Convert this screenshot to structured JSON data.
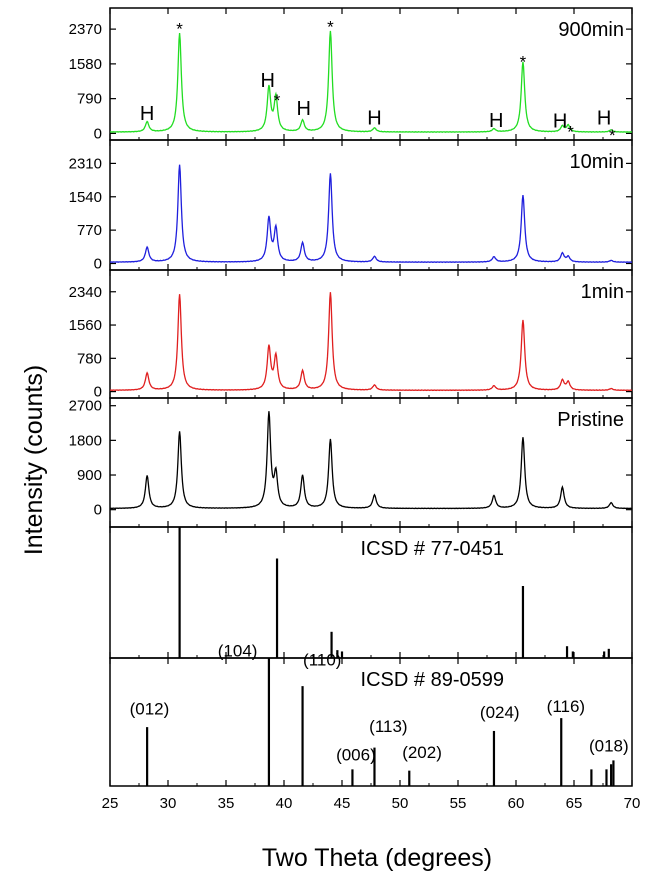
{
  "chart_data": {
    "type": "line",
    "xlabel": "Two Theta (degrees)",
    "ylabel": "Intensity (counts)",
    "xlim": [
      25,
      70
    ],
    "x_ticks": [
      25,
      30,
      35,
      40,
      45,
      50,
      55,
      60,
      65,
      70
    ],
    "grid": false,
    "peak_width": 0.18,
    "panels": [
      {
        "label": "900min",
        "color": "#22dd22",
        "ylim": [
          -150,
          2850
        ],
        "y_ticks": [
          0,
          790,
          1580,
          2370
        ],
        "baseline": 30,
        "peaks": [
          [
            28.2,
            230
          ],
          [
            31.0,
            2250
          ],
          [
            38.7,
            1000
          ],
          [
            39.3,
            780
          ],
          [
            41.6,
            260
          ],
          [
            44.0,
            2300
          ],
          [
            47.8,
            90
          ],
          [
            58.1,
            70
          ],
          [
            60.6,
            1600
          ],
          [
            64.0,
            130
          ],
          [
            64.5,
            150
          ],
          [
            68.2,
            50
          ]
        ],
        "annotations": [
          {
            "text": "H",
            "x": 28.2,
            "y": 300
          },
          {
            "text": "*",
            "x": 31.0,
            "y": 2470
          },
          {
            "text": "H",
            "x": 38.6,
            "y": 1060
          },
          {
            "text": "*",
            "x": 39.4,
            "y": 850
          },
          {
            "text": "H",
            "x": 41.7,
            "y": 420
          },
          {
            "text": "*",
            "x": 44.0,
            "y": 2520
          },
          {
            "text": "H",
            "x": 47.8,
            "y": 200
          },
          {
            "text": "H",
            "x": 58.3,
            "y": 150
          },
          {
            "text": "*",
            "x": 60.6,
            "y": 1730
          },
          {
            "text": "H",
            "x": 63.8,
            "y": 130
          },
          {
            "text": "*",
            "x": 64.7,
            "y": 130
          },
          {
            "text": "H",
            "x": 67.6,
            "y": 200
          },
          {
            "text": "*",
            "x": 68.3,
            "y": 50
          }
        ]
      },
      {
        "label": "10min",
        "color": "#1f1fdd",
        "ylim": [
          -150,
          2850
        ],
        "y_ticks": [
          0,
          770,
          1540,
          2310
        ],
        "baseline": 30,
        "peaks": [
          [
            28.2,
            340
          ],
          [
            31.0,
            2250
          ],
          [
            38.7,
            1000
          ],
          [
            39.3,
            760
          ],
          [
            41.6,
            440
          ],
          [
            44.0,
            2050
          ],
          [
            47.8,
            130
          ],
          [
            58.1,
            120
          ],
          [
            60.6,
            1550
          ],
          [
            64.0,
            200
          ],
          [
            64.5,
            120
          ],
          [
            68.2,
            40
          ]
        ],
        "annotations": []
      },
      {
        "label": "1min",
        "color": "#e01f1f",
        "ylim": [
          -150,
          2850
        ],
        "y_ticks": [
          0,
          780,
          1560,
          2340
        ],
        "baseline": 30,
        "peaks": [
          [
            28.2,
            400
          ],
          [
            31.0,
            2250
          ],
          [
            38.7,
            1000
          ],
          [
            39.3,
            780
          ],
          [
            41.6,
            450
          ],
          [
            44.0,
            2300
          ],
          [
            47.8,
            120
          ],
          [
            58.1,
            100
          ],
          [
            60.6,
            1650
          ],
          [
            64.0,
            230
          ],
          [
            64.5,
            190
          ],
          [
            68.2,
            40
          ]
        ],
        "annotations": []
      },
      {
        "label": "Pristine",
        "color": "#000000",
        "ylim": [
          -450,
          2900
        ],
        "y_ticks": [
          0,
          900,
          1800,
          2700
        ],
        "baseline": 30,
        "peaks": [
          [
            28.2,
            850
          ],
          [
            31.0,
            2000
          ],
          [
            38.7,
            2450
          ],
          [
            39.3,
            850
          ],
          [
            41.6,
            850
          ],
          [
            44.0,
            1800
          ],
          [
            47.8,
            350
          ],
          [
            58.1,
            330
          ],
          [
            60.6,
            1850
          ],
          [
            64.0,
            550
          ],
          [
            68.2,
            150
          ]
        ],
        "annotations": []
      }
    ],
    "references": [
      {
        "label": "ICSD # 77-0451",
        "ylim": [
          0,
          100
        ],
        "lines": [
          [
            31.0,
            100
          ],
          [
            39.4,
            76
          ],
          [
            44.1,
            20
          ],
          [
            44.6,
            6
          ],
          [
            45.0,
            5
          ],
          [
            60.6,
            55
          ],
          [
            64.4,
            9
          ],
          [
            64.9,
            5
          ],
          [
            67.6,
            5
          ],
          [
            68.0,
            7
          ]
        ],
        "annotations": []
      },
      {
        "label": "ICSD # 89-0599",
        "ylim": [
          0,
          100
        ],
        "lines": [
          [
            28.2,
            46
          ],
          [
            38.7,
            100
          ],
          [
            41.6,
            78
          ],
          [
            45.9,
            13
          ],
          [
            47.8,
            30
          ],
          [
            50.8,
            12
          ],
          [
            58.1,
            43
          ],
          [
            63.9,
            53
          ],
          [
            66.5,
            13
          ],
          [
            67.8,
            13
          ],
          [
            68.2,
            17
          ],
          [
            68.4,
            20
          ]
        ],
        "annotations": [
          {
            "text": "(012)",
            "x": 28.4,
            "y": 56
          },
          {
            "text": "(104)",
            "x": 36.0,
            "y": 101
          },
          {
            "text": "(110)",
            "x": 43.3,
            "y": 94
          },
          {
            "text": "(006)",
            "x": 46.2,
            "y": 20
          },
          {
            "text": "(113)",
            "x": 49.0,
            "y": 42
          },
          {
            "text": "(202)",
            "x": 51.9,
            "y": 22
          },
          {
            "text": "(024)",
            "x": 58.6,
            "y": 53
          },
          {
            "text": "(116)",
            "x": 64.3,
            "y": 58
          },
          {
            "text": "(018)",
            "x": 68.0,
            "y": 27
          }
        ]
      }
    ]
  }
}
